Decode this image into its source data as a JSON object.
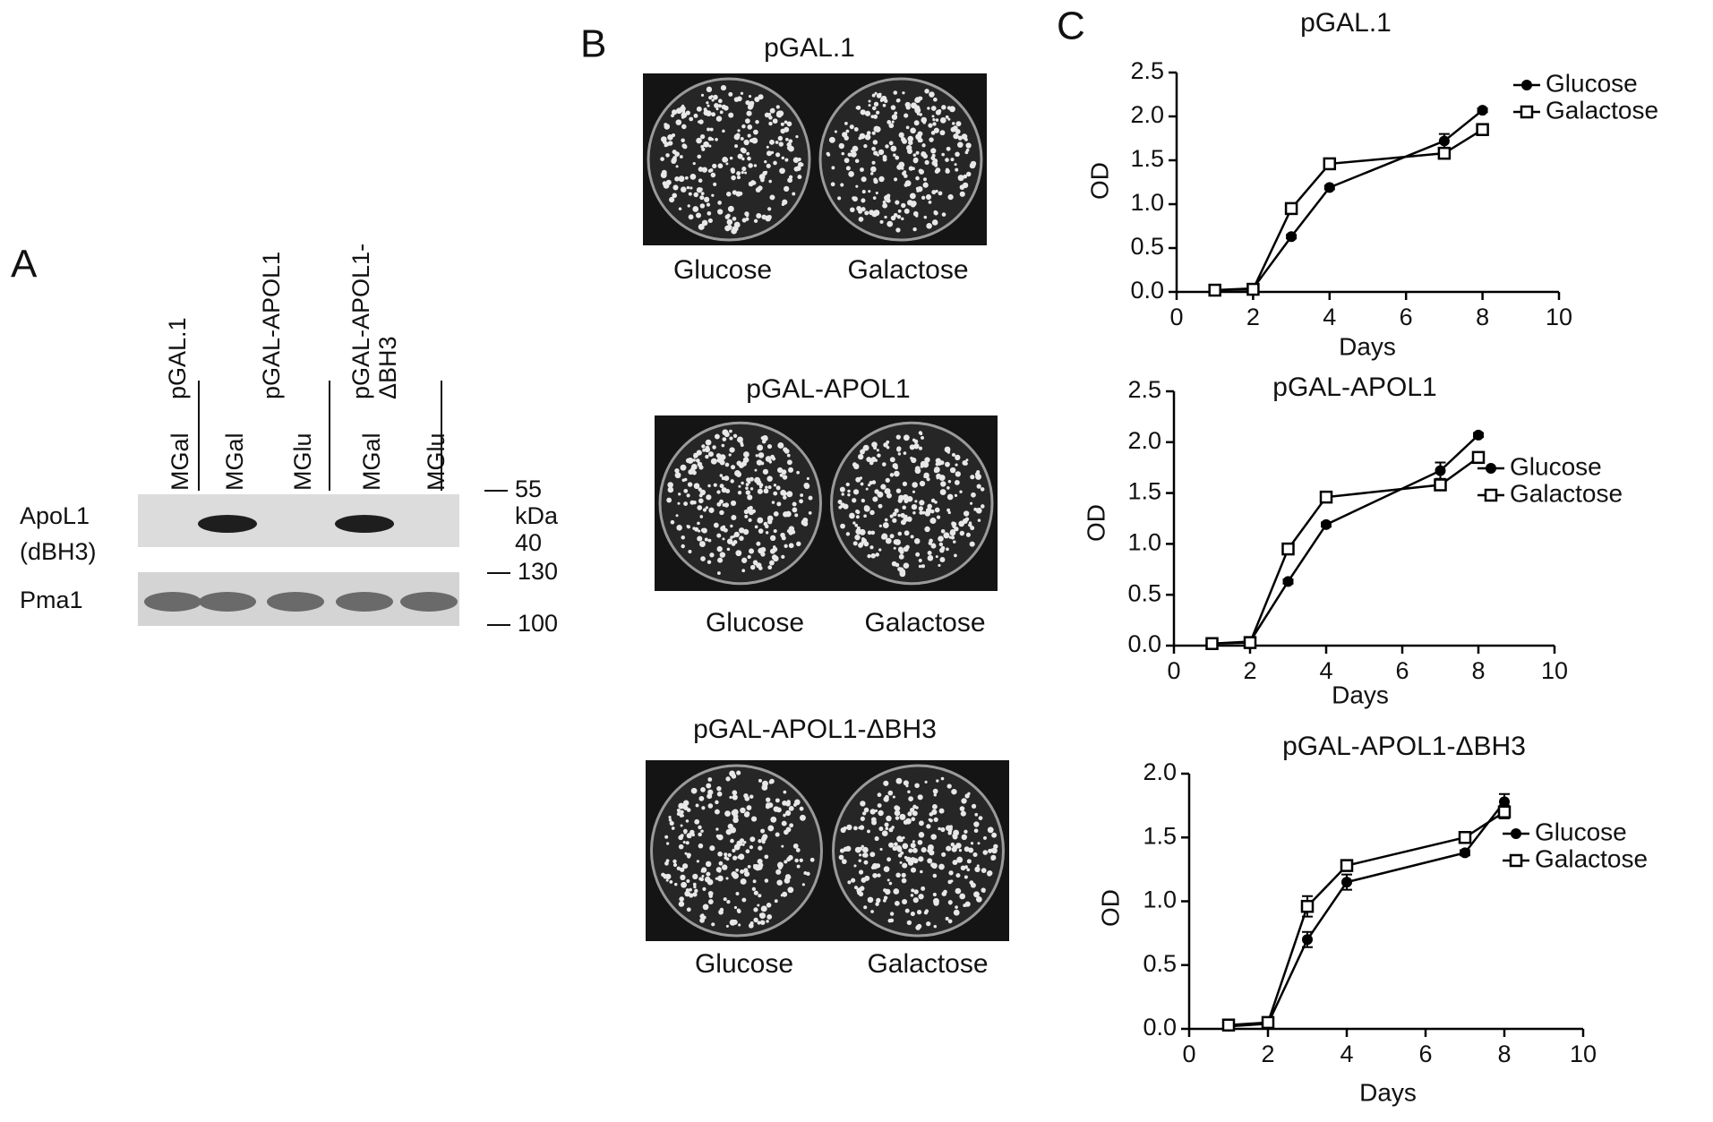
{
  "panel_labels": {
    "a": "A",
    "b": "B",
    "c": "C"
  },
  "blot": {
    "groups": [
      [
        "pGAL.1"
      ],
      [
        "pGAL-APOL1"
      ],
      [
        "pGAL-APOL1-",
        "ΔBH3"
      ]
    ],
    "lanes": [
      "MGal",
      "MGal",
      "MGlu",
      "MGal",
      "MGlu"
    ],
    "rows": [
      [
        "ApoL1",
        "(dBH3)"
      ],
      [
        "Pma1"
      ]
    ],
    "markers": [
      "55",
      "kDa",
      "40",
      "130",
      "100"
    ]
  },
  "plates": [
    {
      "title": "pGAL.1",
      "labels": [
        "Glucose",
        "Galactose"
      ]
    },
    {
      "title": "pGAL-APOL1",
      "labels": [
        "Glucose",
        "Galactose"
      ]
    },
    {
      "title": "pGAL-APOL1-ΔBH3",
      "labels": [
        "Glucose",
        "Galactose"
      ]
    }
  ],
  "chart_data": [
    {
      "type": "line",
      "title": "pGAL.1",
      "x_label": "Days",
      "y_label": "OD",
      "x": [
        1,
        2,
        3,
        4,
        7,
        8
      ],
      "series": [
        {
          "name": "Glucose",
          "color": "#000000",
          "marker": "circle",
          "values": [
            0.02,
            0.04,
            0.63,
            1.19,
            1.72,
            2.07
          ],
          "errors": [
            0,
            0,
            0.02,
            0.02,
            0.08,
            0.02
          ]
        },
        {
          "name": "Galactose",
          "color": "#000000",
          "marker": "square",
          "values": [
            0.02,
            0.03,
            0.95,
            1.46,
            1.58,
            1.85
          ],
          "errors": [
            0,
            0,
            0.03,
            0.02,
            0.03,
            0.03
          ]
        }
      ],
      "xlim": [
        0,
        10
      ],
      "xticks": [
        0,
        2,
        4,
        6,
        8,
        10
      ],
      "ylim": [
        0,
        2.5
      ],
      "yticks": [
        {
          "value": 0,
          "label": "0.0"
        },
        0.5,
        {
          "value": 1,
          "label": "1.0"
        },
        1.5,
        {
          "value": 2,
          "label": "2.0"
        },
        2.5
      ],
      "legend": "right"
    },
    {
      "type": "line",
      "title": "pGAL-APOL1",
      "x_label": "Days",
      "y_label": "OD",
      "x": [
        1,
        2,
        3,
        4,
        7,
        8
      ],
      "series": [
        {
          "name": "Glucose",
          "color": "#000000",
          "marker": "circle",
          "values": [
            0.02,
            0.04,
            0.63,
            1.19,
            1.72,
            2.07
          ],
          "errors": [
            0,
            0,
            0.02,
            0.02,
            0.08,
            0.02
          ]
        },
        {
          "name": "Galactose",
          "color": "#000000",
          "marker": "square",
          "values": [
            0.02,
            0.03,
            0.95,
            1.46,
            1.58,
            1.85
          ],
          "errors": [
            0,
            0,
            0.03,
            0.02,
            0.03,
            0.03
          ]
        }
      ],
      "xlim": [
        0,
        10
      ],
      "xticks": [
        0,
        2,
        4,
        6,
        8,
        10
      ],
      "ylim": [
        0,
        2.5
      ],
      "yticks": [
        {
          "value": 0,
          "label": "0.0"
        },
        0.5,
        {
          "value": 1,
          "label": "1.0"
        },
        1.5,
        {
          "value": 2,
          "label": "2.0"
        },
        2.5
      ],
      "legend": "right"
    },
    {
      "type": "line",
      "title": "pGAL-APOL1-ΔBH3",
      "x_label": "Days",
      "y_label": "OD",
      "x": [
        1,
        2,
        3,
        4,
        7,
        8
      ],
      "series": [
        {
          "name": "Glucose",
          "color": "#000000",
          "marker": "circle",
          "values": [
            0.02,
            0.04,
            0.7,
            1.15,
            1.38,
            1.78
          ],
          "errors": [
            0.01,
            0.01,
            0.06,
            0.06,
            0.02,
            0.06
          ]
        },
        {
          "name": "Galactose",
          "color": "#000000",
          "marker": "square",
          "values": [
            0.03,
            0.05,
            0.96,
            1.28,
            1.5,
            1.7
          ],
          "errors": [
            0.01,
            0.01,
            0.08,
            0.04,
            0.03,
            0.05
          ]
        }
      ],
      "xlim": [
        0,
        10
      ],
      "xticks": [
        0,
        2,
        4,
        6,
        8,
        10
      ],
      "ylim": [
        0,
        2
      ],
      "yticks": [
        {
          "value": 0,
          "label": "0.0"
        },
        0.5,
        {
          "value": 1,
          "label": "1.0"
        },
        1.5,
        {
          "value": 2,
          "label": "2.0"
        }
      ],
      "legend": "right"
    }
  ]
}
